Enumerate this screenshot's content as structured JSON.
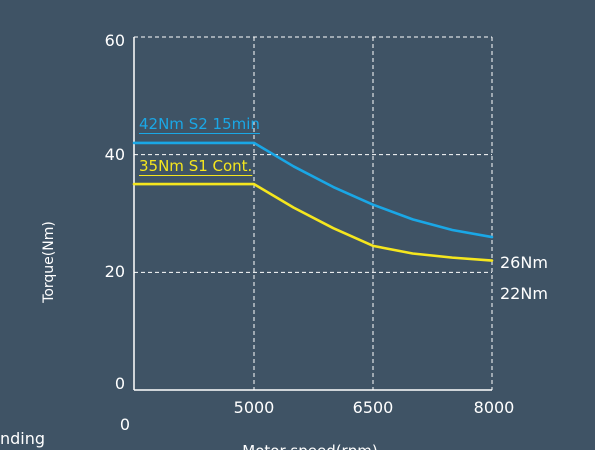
{
  "chart_data": {
    "type": "line",
    "xlabel": "Motor speed(rpm)",
    "ylabel": "Torque(Nm)",
    "xlim": [
      0,
      8000
    ],
    "ylim": [
      0,
      60
    ],
    "x_ticks": [
      5000,
      6500,
      8000
    ],
    "x_tick_labels": [
      "5000",
      "6500",
      "8000"
    ],
    "x_origin_label": "0",
    "y_ticks": [
      0,
      20,
      40,
      60
    ],
    "y_tick_labels": [
      "0",
      "20",
      "40",
      "60"
    ],
    "grid": true,
    "series": [
      {
        "name": "42Nm S2 15min",
        "color": "#1aa7e6",
        "x": [
          0,
          5000,
          5500,
          6000,
          6500,
          7000,
          7500,
          8000
        ],
        "y": [
          42,
          42,
          38,
          34.5,
          31.5,
          29,
          27.2,
          26
        ]
      },
      {
        "name": "35Nm S1 Cont.",
        "color": "#f5e61e",
        "x": [
          0,
          5000,
          5500,
          6000,
          6500,
          7000,
          7500,
          8000
        ],
        "y": [
          35,
          35,
          31,
          27.5,
          24.5,
          23.2,
          22.5,
          22
        ]
      }
    ],
    "end_labels": [
      "26Nm",
      "22Nm"
    ],
    "partial_left_text": "nding"
  }
}
